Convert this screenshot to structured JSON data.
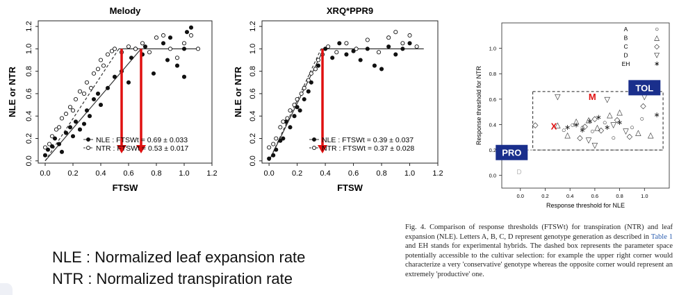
{
  "chart_data": [
    {
      "type": "scatter",
      "title": "Melody",
      "xlabel": "FTSW",
      "ylabel": "NLE or NTR",
      "xlim": [
        -0.05,
        1.2
      ],
      "ylim": [
        -0.02,
        1.25
      ],
      "xticks": [
        0.0,
        0.2,
        0.4,
        0.6,
        0.8,
        1.0,
        1.2
      ],
      "yticks": [
        0.0,
        0.2,
        0.4,
        0.6,
        0.8,
        1.0,
        1.2
      ],
      "xtick_labels": [
        "0.0",
        "0.2",
        "0.4",
        "0.6",
        "0.8",
        "1.0",
        "1.2"
      ],
      "ytick_labels": [
        "0.0",
        "0.2",
        "0.4",
        "0.6",
        "0.8",
        "1.0",
        "1.2"
      ],
      "legend": [
        "NLE : FTSWt = 0.69 ± 0.033",
        "NTR : FTSWt = 0.53 ± 0.017"
      ],
      "legend_position": "bottom-right",
      "series": [
        {
          "name": "NLE",
          "marker": "filled",
          "x": [
            0.0,
            0.02,
            0.05,
            0.07,
            0.1,
            0.12,
            0.15,
            0.18,
            0.2,
            0.22,
            0.25,
            0.28,
            0.3,
            0.32,
            0.35,
            0.38,
            0.4,
            0.45,
            0.5,
            0.55,
            0.6,
            0.62,
            0.65,
            0.7,
            0.72,
            0.78,
            0.85,
            0.88,
            0.9,
            0.95,
            1.0,
            1.0,
            1.02,
            1.05
          ],
          "y": [
            0.05,
            0.1,
            0.13,
            0.2,
            0.15,
            0.08,
            0.25,
            0.3,
            0.22,
            0.35,
            0.28,
            0.33,
            0.45,
            0.4,
            0.55,
            0.6,
            0.5,
            0.65,
            0.75,
            0.8,
            0.7,
            0.92,
            1.0,
            0.95,
            1.02,
            0.78,
            1.05,
            0.9,
            1.1,
            0.85,
            1.0,
            0.75,
            1.15,
            1.19
          ],
          "breakpoint": 0.69
        },
        {
          "name": "NTR",
          "marker": "open",
          "x": [
            0.0,
            0.03,
            0.05,
            0.08,
            0.1,
            0.12,
            0.15,
            0.18,
            0.2,
            0.22,
            0.25,
            0.28,
            0.3,
            0.33,
            0.35,
            0.38,
            0.4,
            0.42,
            0.45,
            0.48,
            0.5,
            0.55,
            0.6,
            0.65,
            0.7,
            0.75,
            0.8,
            0.85,
            0.9,
            0.95,
            1.0,
            1.05,
            1.1
          ],
          "y": [
            0.12,
            0.15,
            0.22,
            0.28,
            0.3,
            0.38,
            0.42,
            0.48,
            0.45,
            0.55,
            0.62,
            0.6,
            0.7,
            0.65,
            0.78,
            0.82,
            0.9,
            0.85,
            0.95,
            0.98,
            1.0,
            0.97,
            1.02,
            1.0,
            1.05,
            0.97,
            1.1,
            1.12,
            1.0,
            0.92,
            1.05,
            1.12,
            1.0
          ],
          "breakpoint": 0.53
        }
      ],
      "arrows_x": [
        0.55,
        0.69
      ],
      "arrow_color": "#e01010"
    },
    {
      "type": "scatter",
      "title": "XRQ*PPR9",
      "xlabel": "FTSW",
      "ylabel": "NLE or NTR",
      "xlim": [
        -0.05,
        1.2
      ],
      "ylim": [
        -0.02,
        1.25
      ],
      "xticks": [
        0.0,
        0.2,
        0.4,
        0.6,
        0.8,
        1.0,
        1.2
      ],
      "yticks": [
        0.0,
        0.2,
        0.4,
        0.6,
        0.8,
        1.0,
        1.2
      ],
      "xtick_labels": [
        "0.0",
        "0.2",
        "0.4",
        "0.6",
        "0.8",
        "1.0",
        "1.2"
      ],
      "ytick_labels": [
        "0.0",
        "0.2",
        "0.4",
        "0.6",
        "0.8",
        "1.0",
        "1.2"
      ],
      "legend": [
        "NLE : FTSWt = 0.39 ± 0.037",
        "NTR : FTSWt = 0.37 ± 0.028"
      ],
      "legend_position": "bottom-right",
      "series": [
        {
          "name": "NLE",
          "marker": "filled",
          "x": [
            0.0,
            0.03,
            0.05,
            0.08,
            0.1,
            0.12,
            0.15,
            0.18,
            0.2,
            0.22,
            0.25,
            0.28,
            0.3,
            0.35,
            0.4,
            0.45,
            0.5,
            0.55,
            0.6,
            0.65,
            0.7,
            0.75,
            0.8,
            0.85,
            0.9,
            0.95,
            1.0
          ],
          "y": [
            0.02,
            0.05,
            0.1,
            0.18,
            0.2,
            0.35,
            0.3,
            0.4,
            0.48,
            0.45,
            0.55,
            0.62,
            0.7,
            0.85,
            1.0,
            0.92,
            1.05,
            0.95,
            0.98,
            0.9,
            1.0,
            0.85,
            0.82,
            1.02,
            0.95,
            1.0,
            1.05
          ],
          "breakpoint": 0.39
        },
        {
          "name": "NTR",
          "marker": "open",
          "x": [
            0.0,
            0.03,
            0.05,
            0.08,
            0.1,
            0.13,
            0.15,
            0.18,
            0.2,
            0.23,
            0.25,
            0.28,
            0.3,
            0.33,
            0.35,
            0.38,
            0.42,
            0.48,
            0.55,
            0.62,
            0.7,
            0.78,
            0.85,
            0.9,
            0.95,
            1.0,
            1.05
          ],
          "y": [
            0.12,
            0.15,
            0.2,
            0.3,
            0.35,
            0.38,
            0.45,
            0.5,
            0.55,
            0.6,
            0.65,
            0.72,
            0.78,
            0.82,
            0.9,
            0.95,
            1.02,
            0.97,
            1.05,
            1.0,
            1.08,
            0.97,
            1.1,
            1.15,
            1.05,
            1.12,
            1.02
          ],
          "breakpoint": 0.37
        }
      ],
      "arrows_x": [
        0.38
      ],
      "arrow_color": "#e01010"
    },
    {
      "type": "scatter",
      "title": "",
      "xlabel": "Response threshold for NLE",
      "ylabel": "Response threshold for NTR",
      "xlim": [
        -0.15,
        1.2
      ],
      "ylim": [
        -0.1,
        1.2
      ],
      "xticks": [
        0.0,
        0.2,
        0.4,
        0.6,
        0.8,
        1.0
      ],
      "yticks": [
        0.0,
        0.2,
        0.4,
        0.6,
        0.8,
        1.0
      ],
      "xtick_labels": [
        "0.0",
        "0.2",
        "0.4",
        "0.6",
        "0.8",
        "1.0"
      ],
      "ytick_labels": [
        "0.0",
        "0.2",
        "0.4",
        "0.6",
        "0.8",
        "1.0"
      ],
      "legend": [
        {
          "label": "A",
          "symbol": "○"
        },
        {
          "label": "B",
          "symbol": "△"
        },
        {
          "label": "C",
          "symbol": "◇"
        },
        {
          "label": "D",
          "symbol": "▽"
        },
        {
          "label": "EH",
          "symbol": "∗"
        }
      ],
      "legend_position": "top-right",
      "dashed_box": {
        "x": [
          0.1,
          1.15
        ],
        "y": [
          0.2,
          0.66
        ]
      },
      "dashed_line_y": 0.2,
      "series": [
        {
          "name": "A",
          "symbol": "○",
          "x": [
            0.35,
            0.42,
            0.5,
            0.58,
            0.68,
            0.75,
            0.9,
            0.98
          ],
          "y": [
            0.36,
            0.4,
            0.38,
            0.35,
            0.42,
            0.3,
            0.38,
            0.45
          ]
        },
        {
          "name": "B",
          "symbol": "△",
          "x": [
            0.3,
            0.38,
            0.45,
            0.55,
            0.62,
            0.72,
            0.8,
            0.95,
            1.05
          ],
          "y": [
            0.4,
            0.32,
            0.43,
            0.44,
            0.38,
            0.48,
            0.5,
            0.34,
            0.32
          ]
        },
        {
          "name": "C",
          "symbol": "◇",
          "x": [
            0.12,
            0.48,
            0.52,
            0.6,
            0.65,
            0.78,
            0.88,
            0.99
          ],
          "y": [
            0.4,
            0.3,
            0.39,
            0.45,
            0.36,
            0.44,
            0.31,
            0.55
          ]
        },
        {
          "name": "D",
          "symbol": "▽",
          "x": [
            0.3,
            0.55,
            0.7,
            0.75,
            0.85,
            1.0,
            0.6
          ],
          "y": [
            0.62,
            0.28,
            0.6,
            0.4,
            0.35,
            0.62,
            0.24
          ]
        },
        {
          "name": "EH",
          "symbol": "∗",
          "x": [
            0.38,
            0.45,
            0.5,
            0.56,
            0.63,
            0.7,
            0.8,
            1.1
          ],
          "y": [
            0.38,
            0.4,
            0.36,
            0.43,
            0.46,
            0.38,
            0.42,
            0.48
          ]
        }
      ],
      "annotations": [
        {
          "text": "X",
          "x": 0.27,
          "y": 0.39,
          "color": "#e01010"
        },
        {
          "text": "M",
          "x": 0.58,
          "y": 0.62,
          "color": "#e01010"
        }
      ],
      "labels": [
        {
          "text": "PRO",
          "x": -0.07,
          "y": 0.18
        },
        {
          "text": "TOL",
          "x": 1.0,
          "y": 0.69
        },
        {
          "text": "D",
          "x": -0.01,
          "y": 0.03
        }
      ]
    }
  ],
  "legend_text": {
    "nle": "NLE : Normalized leaf expansion rate",
    "ntr": "NTR : Normalized transpiration rate"
  },
  "caption": {
    "part1": "Fig. 4. Comparison of response thresholds (FTSWt) for transpiration (NTR) and leaf expansion (NLE). Letters A, B, C, D represent genotype generation as described in ",
    "link": "Table 1",
    "part2": " and EH stands for experimental hybrids. The dashed box represents the parameter space potentially accessible to the cultivar selection: for example the upper right corner would characterize a very 'conservative' genotype whereas the opposite corner would represent an extremely 'productive' one."
  }
}
